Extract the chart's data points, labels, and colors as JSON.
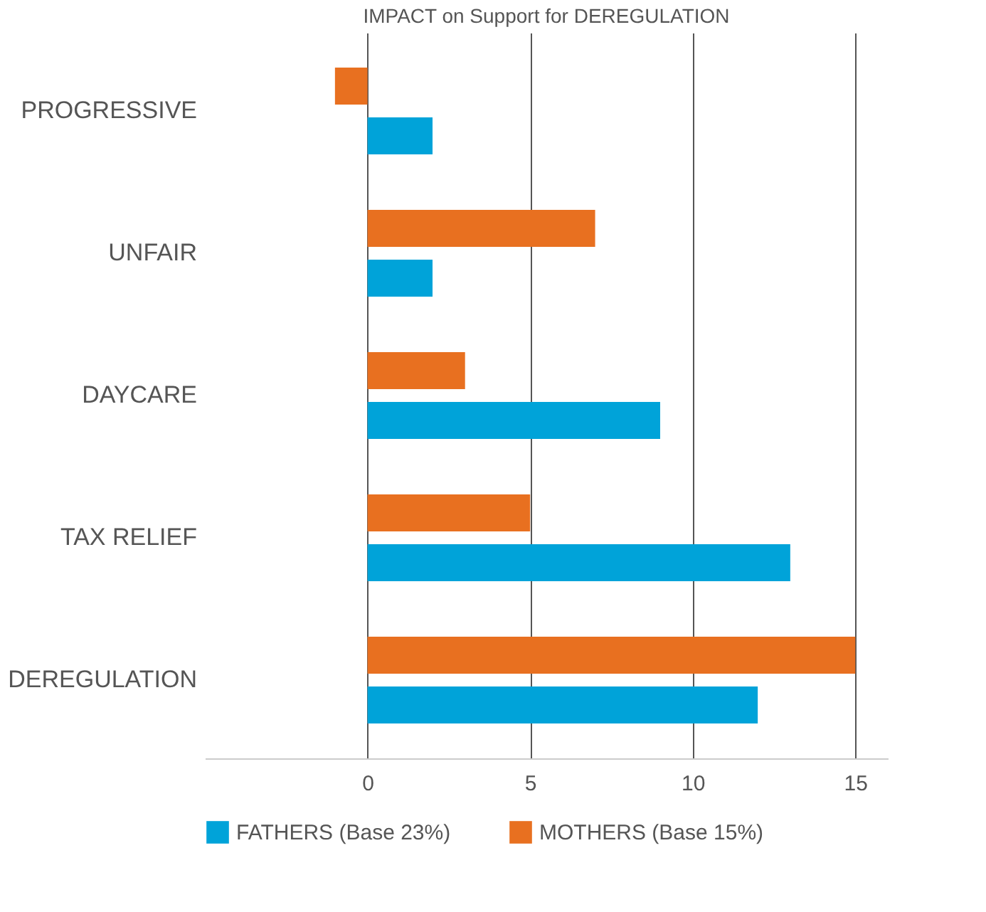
{
  "chart_data": {
    "type": "bar",
    "orientation": "horizontal",
    "title": "IMPACT on Support for DEREGULATION",
    "categories": [
      "PROGRESSIVE",
      "UNFAIR",
      "DAYCARE",
      "TAX RELIEF",
      "DEREGULATION"
    ],
    "series": [
      {
        "name": "FATHERS (Base 23%)",
        "color": "#00a3d9",
        "values": [
          2,
          2,
          9,
          13,
          12
        ]
      },
      {
        "name": "MOTHERS (Base 15%)",
        "color": "#e87020",
        "values": [
          -1,
          7,
          3,
          5,
          15
        ]
      }
    ],
    "xlim": [
      -5,
      16
    ],
    "xticks": [
      0,
      5,
      10,
      15
    ],
    "grid": "x",
    "legend": "bottom"
  }
}
